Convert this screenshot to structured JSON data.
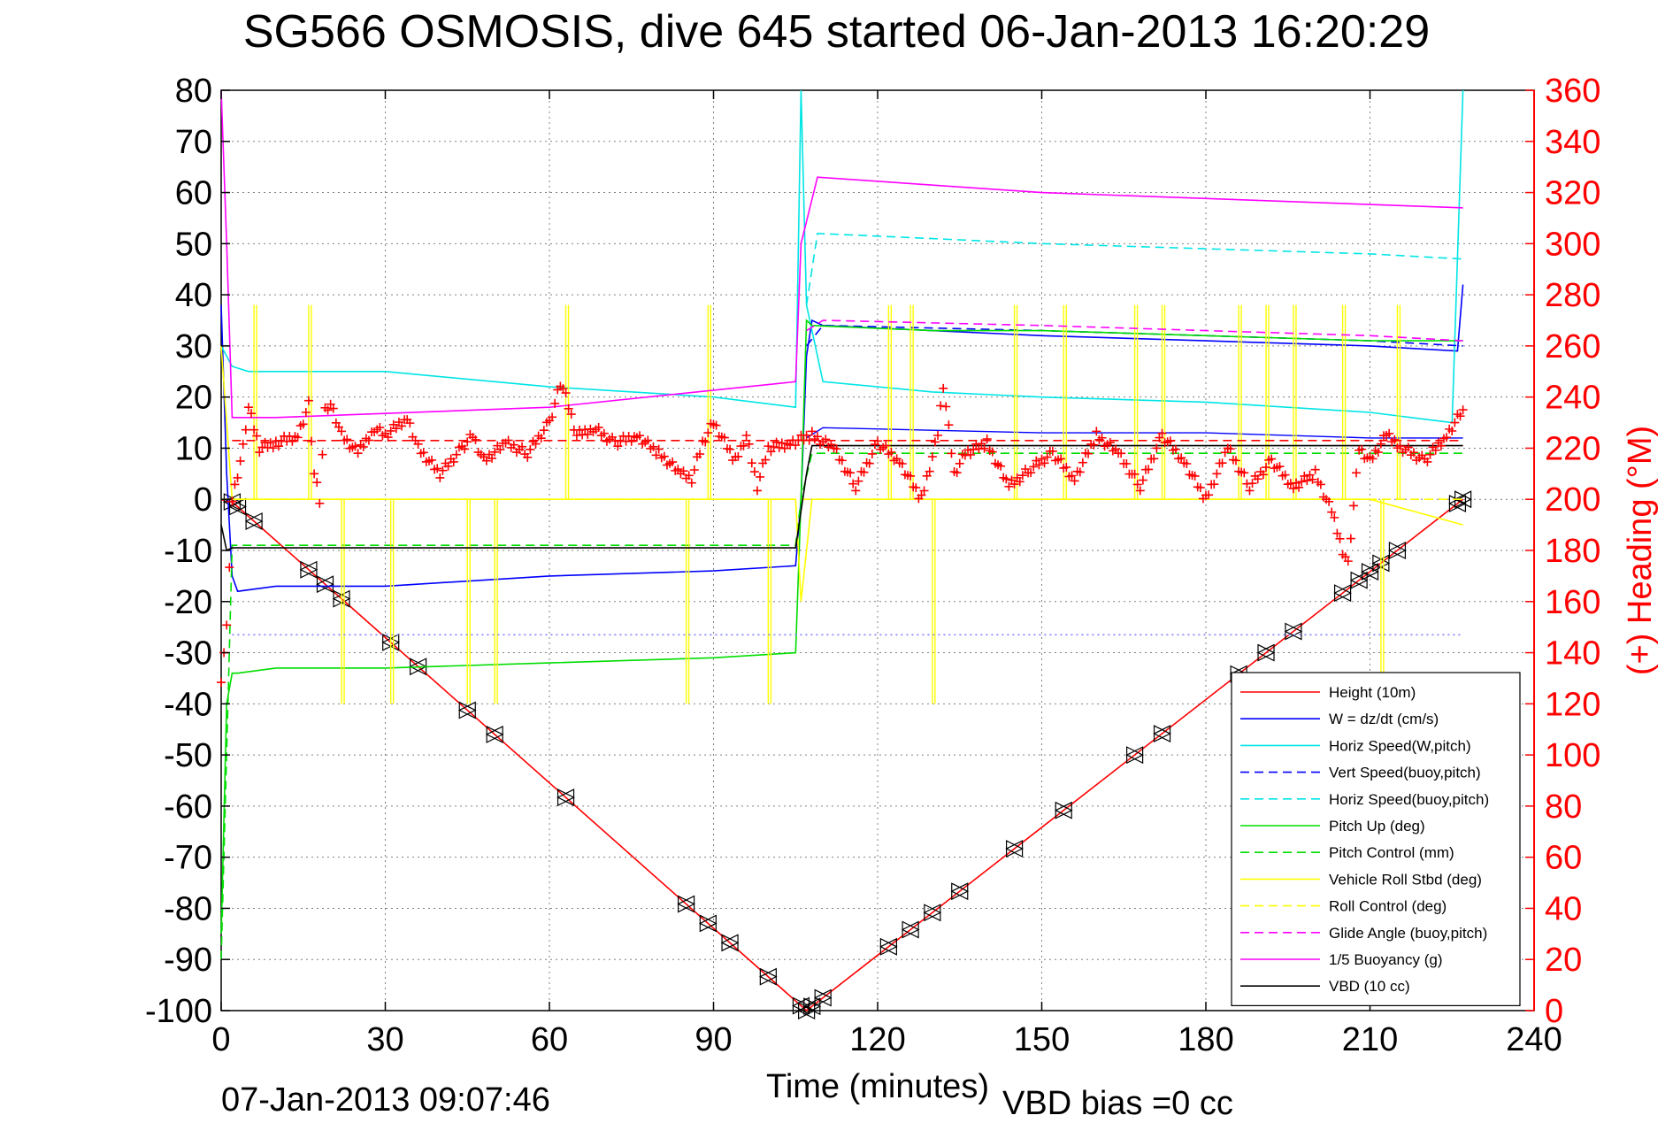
{
  "chart_data": {
    "type": "line",
    "title": "SG566 OSMOSIS, dive 645 started 06-Jan-2013 16:20:29",
    "xlabel": "Time (minutes)",
    "ylabel": "",
    "y2label": "(+) Heading (°M)",
    "xlim": [
      0,
      240
    ],
    "ylim": [
      -100,
      80
    ],
    "y2lim": [
      0,
      360
    ],
    "xticks": [
      "0",
      "30",
      "60",
      "90",
      "120",
      "150",
      "180",
      "210",
      "240"
    ],
    "yticks": [
      "80",
      "70",
      "60",
      "50",
      "40",
      "30",
      "20",
      "10",
      "0",
      "-10",
      "-20",
      "-30",
      "-40",
      "-50",
      "-60",
      "-70",
      "-80",
      "-90",
      "-100"
    ],
    "y2ticks": [
      "360",
      "340",
      "320",
      "300",
      "280",
      "260",
      "240",
      "220",
      "200",
      "180",
      "160",
      "140",
      "120",
      "100",
      "80",
      "60",
      "40",
      "20",
      "0"
    ],
    "grid": true,
    "legend_position": "bottom-right",
    "series": [
      {
        "name": "Height (10m)",
        "color": "#ff0000",
        "style": "solid",
        "x": [
          0,
          1,
          2,
          107,
          227
        ],
        "y": [
          0,
          -0.5,
          -0.5,
          -100,
          0
        ],
        "markers_x": [
          2,
          3,
          6,
          16,
          19,
          22,
          31,
          36,
          45,
          50,
          63,
          85,
          89,
          93,
          100,
          106,
          107,
          108,
          110,
          122,
          126,
          130,
          135,
          145,
          154,
          167,
          172,
          186,
          191,
          196,
          205,
          208,
          210,
          212,
          215,
          226,
          227
        ]
      },
      {
        "name": "W = dz/dt (cm/s)",
        "color": "#0000ff",
        "style": "solid",
        "x": [
          0,
          1,
          2,
          3,
          10,
          30,
          60,
          90,
          105,
          106,
          107,
          108,
          110,
          130,
          150,
          180,
          210,
          226,
          227
        ],
        "y": [
          38,
          5,
          -15,
          -18,
          -17,
          -17,
          -15,
          -14,
          -13,
          0,
          28,
          35,
          34,
          33,
          32,
          31,
          30,
          29,
          42
        ],
        "y2_x": [
          107,
          110,
          150,
          180,
          210,
          227
        ],
        "y2_y": [
          12,
          14,
          13,
          13,
          12,
          12
        ]
      },
      {
        "name": "Horiz Speed(W,pitch)",
        "color": "#00e5e5",
        "style": "solid",
        "x": [
          0,
          2,
          5,
          30,
          60,
          90,
          105,
          106,
          107,
          110,
          130,
          150,
          180,
          210,
          225,
          227
        ],
        "y": [
          30,
          26,
          25,
          25,
          22,
          20,
          18,
          80,
          38,
          23,
          21,
          20,
          19,
          17,
          15,
          80
        ]
      },
      {
        "name": "Vert Speed(buoy,pitch)",
        "color": "#0000ff",
        "style": "dashed",
        "x": [
          107,
          110,
          150,
          180,
          210,
          227
        ],
        "y": [
          30,
          34,
          33,
          32,
          31,
          30
        ]
      },
      {
        "name": "Horiz Speed(buoy,pitch)",
        "color": "#00e5e5",
        "style": "dashed",
        "x": [
          107,
          109,
          130,
          150,
          180,
          210,
          227
        ],
        "y": [
          38,
          52,
          51,
          50,
          49,
          48,
          47
        ]
      },
      {
        "name": "Pitch Up (deg)",
        "color": "#00dd00",
        "style": "solid",
        "x": [
          0,
          1,
          2,
          3,
          10,
          30,
          60,
          90,
          105,
          106,
          107,
          108,
          130,
          150,
          180,
          210,
          227
        ],
        "y": [
          -85,
          -40,
          -34,
          -34,
          -33,
          -33,
          -32,
          -31,
          -30,
          0,
          35,
          34,
          33,
          33,
          32,
          31,
          31
        ]
      },
      {
        "name": "Pitch Control (mm)",
        "color": "#00dd00",
        "style": "dashed",
        "x": [
          0,
          2,
          105,
          106,
          108,
          227
        ],
        "y": [
          -90,
          -9,
          -9,
          0,
          9,
          9
        ]
      },
      {
        "name": "Vehicle Roll Stbd (deg)",
        "color": "#ffff00",
        "style": "solid",
        "x": [
          0,
          2,
          5,
          30,
          60,
          90,
          105,
          106,
          108,
          130,
          150,
          180,
          210,
          227
        ],
        "y": [
          30,
          0,
          0,
          0,
          0,
          0,
          0,
          -20,
          0,
          0,
          0,
          0,
          0,
          -5
        ],
        "spikes_x": [
          6,
          16,
          22,
          31,
          45,
          50,
          63,
          85,
          89,
          100,
          122,
          126,
          130,
          145,
          154,
          167,
          172,
          186,
          191,
          196,
          205,
          212,
          215
        ],
        "spikes_y": [
          38,
          38,
          -40,
          -40,
          -40,
          -40,
          38,
          -40,
          38,
          -40,
          38,
          38,
          -40,
          38,
          38,
          38,
          38,
          38,
          38,
          38,
          38,
          -40,
          38
        ]
      },
      {
        "name": "Roll Control (deg)",
        "color": "#ffff00",
        "style": "dashed",
        "x": [
          0,
          227
        ],
        "y": [
          0,
          0
        ]
      },
      {
        "name": "Glide Angle (buoy,pitch)",
        "color": "#ff00ff",
        "style": "dashed",
        "x": [
          107,
          110,
          150,
          180,
          210,
          227
        ],
        "y": [
          33,
          35,
          34,
          33,
          32,
          31
        ]
      },
      {
        "name": "1/5 Buoyancy (g)",
        "color": "#ff00ff",
        "style": "solid",
        "x": [
          0,
          1,
          2,
          10,
          60,
          105,
          106,
          109,
          150,
          227
        ],
        "y": [
          80,
          50,
          16,
          16,
          18,
          23,
          50,
          63,
          60,
          57
        ]
      },
      {
        "name": "VBD (10 cc)",
        "color": "#000000",
        "style": "solid",
        "x": [
          0,
          1,
          2,
          105,
          107,
          108,
          227
        ],
        "y": [
          -5,
          -10,
          -9.5,
          -9.5,
          5,
          10.5,
          10.5
        ]
      },
      {
        "name": "",
        "color": "#8080ff",
        "style": "dotted",
        "x": [
          2,
          227
        ],
        "y": [
          -26.5,
          -26.5
        ]
      },
      {
        "name": "",
        "color": "#ff0000",
        "style": "dashed",
        "x": [
          2,
          227
        ],
        "y": [
          11.5,
          11.5
        ]
      }
    ],
    "heading_series": {
      "marker": "+",
      "color": "#ff0000",
      "x": [
        0,
        1,
        2,
        4,
        5,
        7,
        10,
        14,
        16,
        17,
        18,
        19,
        20,
        22,
        25,
        28,
        30,
        34,
        36,
        38,
        40,
        44,
        46,
        48,
        52,
        56,
        60,
        62,
        63,
        65,
        68,
        72,
        76,
        80,
        84,
        86,
        88,
        90,
        94,
        96,
        98,
        100,
        104,
        108,
        112,
        116,
        120,
        124,
        128,
        131,
        132,
        134,
        136,
        140,
        144,
        148,
        152,
        156,
        160,
        164,
        168,
        172,
        176,
        180,
        184,
        188,
        192,
        196,
        200,
        203,
        205,
        206,
        208,
        210,
        213,
        216,
        220,
        224,
        227
      ],
      "y": [
        130,
        150,
        200,
        220,
        236,
        220,
        222,
        225,
        237,
        210,
        200,
        235,
        238,
        225,
        218,
        228,
        225,
        232,
        220,
        215,
        210,
        220,
        225,
        215,
        222,
        218,
        230,
        245,
        240,
        225,
        228,
        222,
        225,
        218,
        210,
        208,
        222,
        230,
        215,
        225,
        205,
        220,
        222,
        225,
        220,
        205,
        222,
        215,
        200,
        225,
        245,
        210,
        218,
        222,
        205,
        212,
        218,
        208,
        225,
        218,
        205,
        225,
        215,
        200,
        220,
        205,
        215,
        205,
        210,
        195,
        180,
        175,
        220,
        215,
        225,
        220,
        215,
        225,
        235
      ]
    }
  },
  "footer": {
    "timestamp": "07-Jan-2013 09:07:46",
    "vbd_bias": "VBD bias =0 cc"
  }
}
